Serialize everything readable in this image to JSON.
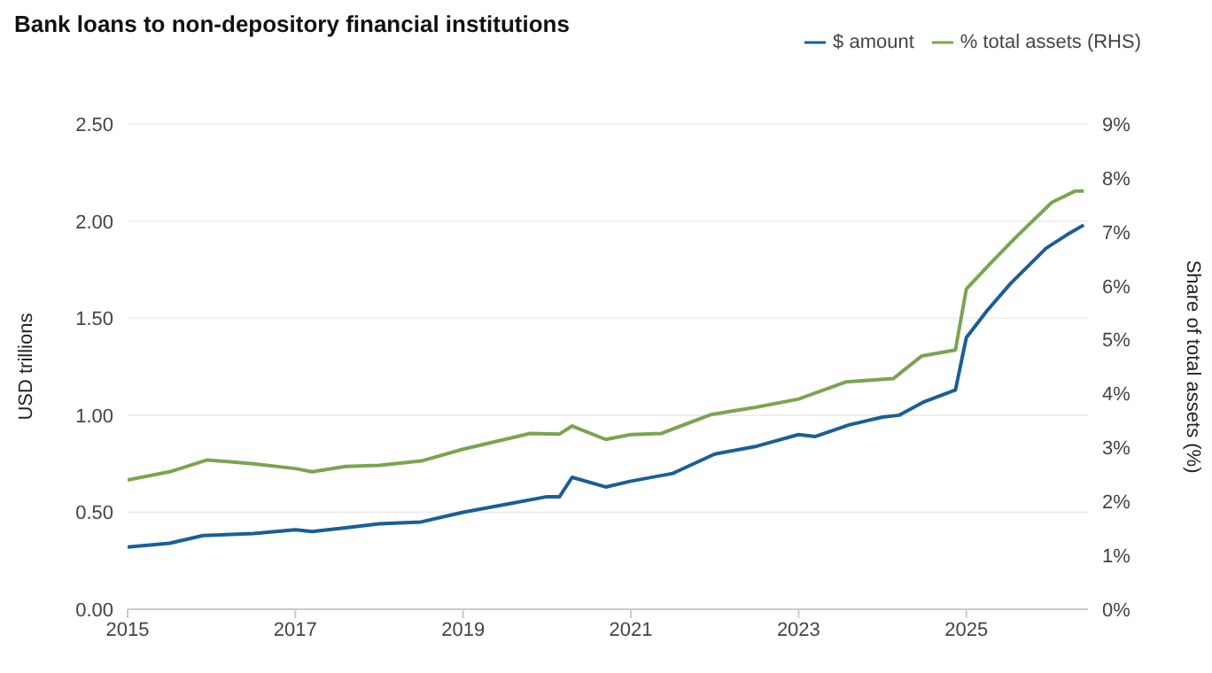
{
  "chart_data": {
    "type": "line",
    "title": "Bank loans to non-depository financial institutions",
    "ylabel": "USD trillions",
    "y2label": "Share of total assets (%)",
    "xlim": [
      2015,
      2026.45
    ],
    "xticks": [
      2015,
      2017,
      2019,
      2021,
      2023,
      2025
    ],
    "ylim": [
      0,
      2.5
    ],
    "yticks": [
      {
        "value": 0,
        "label": "0.00"
      },
      {
        "value": 0.5,
        "label": "0.50"
      },
      {
        "value": 1,
        "label": "1.00"
      },
      {
        "value": 1.5,
        "label": "1.50"
      },
      {
        "value": 2,
        "label": "2.00"
      },
      {
        "value": 2.5,
        "label": "2.50"
      }
    ],
    "y2lim": [
      0,
      9
    ],
    "y2ticks": [
      {
        "value": 0,
        "label": "0%"
      },
      {
        "value": 1,
        "label": "1%"
      },
      {
        "value": 2,
        "label": "2%"
      },
      {
        "value": 3,
        "label": "3%"
      },
      {
        "value": 4,
        "label": "4%"
      },
      {
        "value": 5,
        "label": "5%"
      },
      {
        "value": 6,
        "label": "6%"
      },
      {
        "value": 7,
        "label": "7%"
      },
      {
        "value": 8,
        "label": "8%"
      },
      {
        "value": 9,
        "label": "9%"
      }
    ],
    "grid": "y",
    "legend": "top right",
    "marker": "none",
    "line_style": "solid",
    "series": [
      {
        "name": "$ amount",
        "color": "#1a5f96",
        "x": [
          2015,
          2015.5,
          2015.9,
          2016.5,
          2017,
          2017.2,
          2017.6,
          2018,
          2018.5,
          2019,
          2019.5,
          2020,
          2020.15,
          2020.3,
          2020.7,
          2021,
          2021.5,
          2022,
          2022.5,
          2023,
          2023.2,
          2023.6,
          2024,
          2024.2,
          2024.5,
          2024.87,
          2025,
          2025.25,
          2025.53,
          2025.95,
          2026.2,
          2026.4
        ],
        "values": [
          0.32,
          0.34,
          0.38,
          0.39,
          0.41,
          0.4,
          0.42,
          0.44,
          0.45,
          0.5,
          0.54,
          0.58,
          0.58,
          0.68,
          0.63,
          0.66,
          0.7,
          0.8,
          0.84,
          0.9,
          0.89,
          0.95,
          0.99,
          1.0,
          1.07,
          1.13,
          1.4,
          1.54,
          1.68,
          1.86,
          1.93,
          1.98
        ]
      },
      {
        "name": "% total assets (RHS)",
        "axis": "y2",
        "color": "#7ba451",
        "x": [
          2015,
          2015.5,
          2015.95,
          2016.5,
          2017,
          2017.2,
          2017.6,
          2018,
          2018.5,
          2019,
          2019.8,
          2020.15,
          2020.3,
          2020.7,
          2021,
          2021.36,
          2021.95,
          2022.5,
          2023,
          2023.57,
          2024.13,
          2024.47,
          2024.87,
          2025,
          2025.29,
          2025.57,
          2026.02,
          2026.3,
          2026.4
        ],
        "values": [
          2.4,
          2.55,
          2.77,
          2.7,
          2.61,
          2.55,
          2.65,
          2.67,
          2.75,
          2.97,
          3.26,
          3.25,
          3.4,
          3.15,
          3.24,
          3.26,
          3.61,
          3.75,
          3.9,
          4.22,
          4.28,
          4.7,
          4.81,
          5.94,
          6.42,
          6.87,
          7.55,
          7.76,
          7.76
        ]
      }
    ]
  }
}
